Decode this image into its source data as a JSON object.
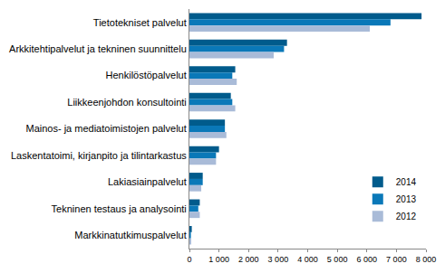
{
  "chart_data": {
    "type": "bar",
    "orientation": "horizontal",
    "categories": [
      "Tietotekniset palvelut",
      "Arkkitehtipalvelut ja tekninen suunnittelu",
      "Henkilöstöpalvelut",
      "Liikkeenjohdon konsultointi",
      "Mainos- ja mediatoimistojen palvelut",
      "Laskentatoimi, kirjanpito ja tilintarkastus",
      "Lakiasiainpalvelut",
      "Tekninen testaus ja analysointi",
      "Markkinatutkimuspalvelut"
    ],
    "series": [
      {
        "name": "2014",
        "color": "#005b8c",
        "values": [
          7850,
          3300,
          1550,
          1400,
          1200,
          1000,
          450,
          350,
          80
        ]
      },
      {
        "name": "2013",
        "color": "#0a78b8",
        "values": [
          6800,
          3200,
          1450,
          1450,
          1200,
          900,
          450,
          300,
          50
        ]
      },
      {
        "name": "2012",
        "color": "#a9bbd8",
        "values": [
          6100,
          2850,
          1600,
          1550,
          1250,
          900,
          400,
          350,
          60
        ]
      }
    ],
    "xlim": [
      0,
      8000
    ],
    "xticks": [
      0,
      {
        "value": 1000,
        "label": "1 000"
      },
      {
        "value": 2000,
        "label": "2 000"
      },
      {
        "value": 3000,
        "label": "3 000"
      },
      {
        "value": 4000,
        "label": "4 000"
      },
      {
        "value": 5000,
        "label": "5 000"
      },
      {
        "value": 6000,
        "label": "6 000"
      },
      {
        "value": 7000,
        "label": "7 000"
      },
      {
        "value": 8000,
        "label": "8 000"
      }
    ],
    "grid": false,
    "legend": "lower right"
  }
}
